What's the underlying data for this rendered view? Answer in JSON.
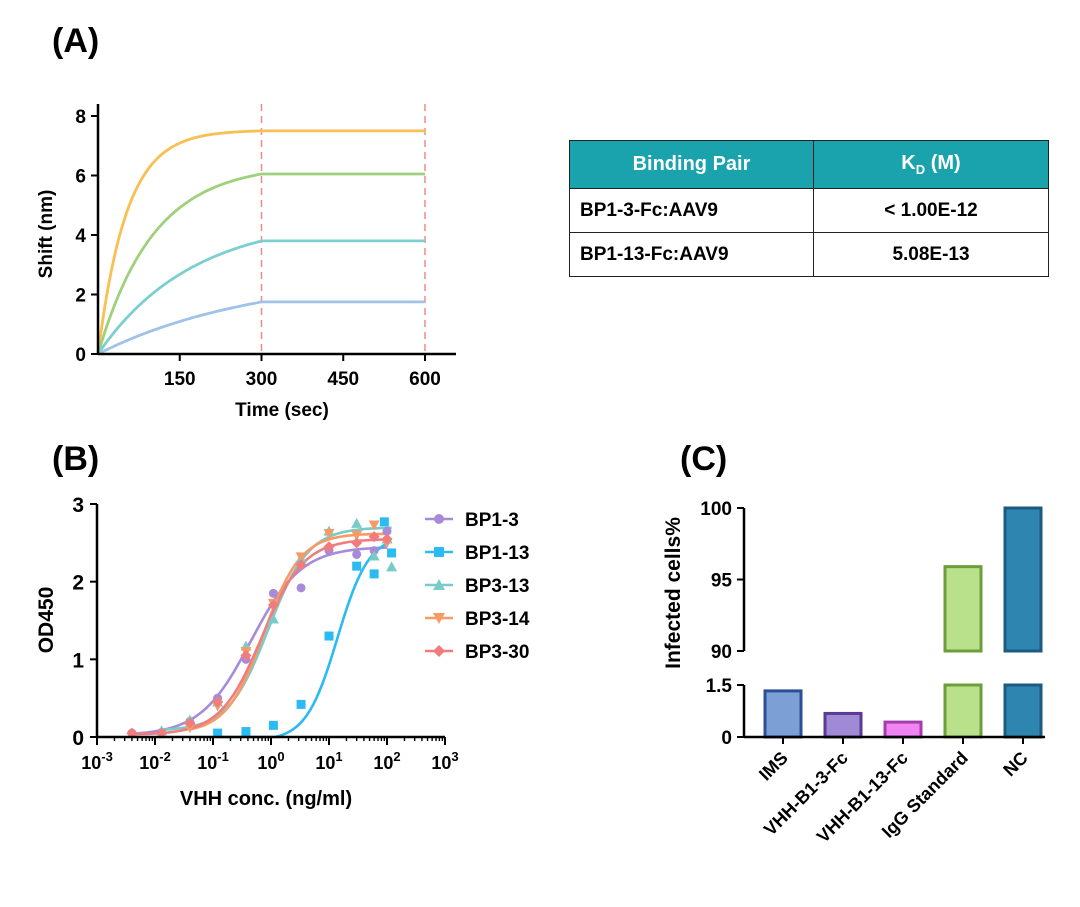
{
  "panels": {
    "a": "(A)",
    "b": "(B)",
    "c": "(C)"
  },
  "table": {
    "header_pair": "Binding Pair",
    "header_kd_main": "K",
    "header_kd_sub": "D",
    "header_kd_unit": " (M)",
    "rows": [
      {
        "pair": "BP1-3-Fc:AAV9",
        "kd": "< 1.00E-12"
      },
      {
        "pair": "BP1-13-Fc:AAV9",
        "kd": "5.08E-13"
      }
    ]
  },
  "chart_data": [
    {
      "id": "A",
      "type": "line",
      "xlabel": "Time (sec)",
      "ylabel": "Shift (nm)",
      "xlim": [
        0,
        650
      ],
      "ylim": [
        0,
        8
      ],
      "xticks": [
        150,
        300,
        450,
        600
      ],
      "yticks": [
        0,
        2,
        4,
        6,
        8
      ],
      "dashed_vlines": [
        300,
        600
      ],
      "association_end": 300,
      "series": [
        {
          "plateau": 7.5,
          "rate": 0.019,
          "color": "#f8bf52"
        },
        {
          "plateau": 6.05,
          "rate": 0.0098,
          "color": "#9fd07c"
        },
        {
          "plateau": 3.8,
          "rate": 0.0058,
          "color": "#7dcfcf"
        },
        {
          "plateau": 1.75,
          "rate": 0.0034,
          "color": "#9fc3e8"
        }
      ]
    },
    {
      "id": "B",
      "type": "scatter",
      "xscale": "log",
      "xlabel": "VHH conc. (ng/ml)",
      "ylabel": "OD450",
      "xlim": [
        0.001,
        1000
      ],
      "ylim": [
        0,
        3
      ],
      "yticks": [
        0,
        1,
        2,
        3
      ],
      "xtick_base": "10",
      "xtick_exponents": [
        "-3",
        "-2",
        "-1",
        "0",
        "1",
        "2",
        "3"
      ],
      "legend_position": "right",
      "series": [
        {
          "name": "BP1-3",
          "color": "#a78bd8",
          "marker": "circle",
          "x": [
            0.004,
            0.013,
            0.04,
            0.12,
            0.37,
            1.1,
            3.3,
            10,
            30,
            60,
            100
          ],
          "y": [
            0.05,
            0.06,
            0.2,
            0.5,
            1.0,
            1.85,
            1.92,
            2.4,
            2.35,
            2.4,
            2.65
          ],
          "fit": {
            "bottom": 0.02,
            "top": 2.45,
            "ec50": 0.45,
            "hill": 1.0
          }
        },
        {
          "name": "BP1-13",
          "color": "#2bbaf2",
          "marker": "square",
          "x": [
            0.12,
            0.37,
            1.1,
            3.3,
            10,
            30,
            60,
            90,
            120
          ],
          "y": [
            0.05,
            0.07,
            0.15,
            0.42,
            1.3,
            2.2,
            2.1,
            2.77,
            2.37
          ],
          "fit": {
            "bottom": -0.05,
            "top": 2.6,
            "ec50": 14,
            "hill": 1.6
          }
        },
        {
          "name": "BP3-13",
          "color": "#78cbc6",
          "marker": "triangle",
          "x": [
            0.013,
            0.04,
            0.12,
            0.37,
            1.1,
            3.3,
            10,
            30,
            60,
            100,
            120
          ],
          "y": [
            0.08,
            0.22,
            0.45,
            1.17,
            1.52,
            2.3,
            2.65,
            2.75,
            2.33,
            2.55,
            2.19
          ],
          "fit": {
            "bottom": 0.08,
            "top": 2.7,
            "ec50": 0.9,
            "hill": 1.25
          }
        },
        {
          "name": "BP3-14",
          "color": "#f79b66",
          "marker": "triangle-down",
          "x": [
            0.04,
            0.12,
            0.37,
            1.1,
            3.3,
            10,
            30,
            60,
            100
          ],
          "y": [
            0.12,
            0.4,
            1.1,
            1.72,
            2.32,
            2.62,
            2.6,
            2.73,
            2.5
          ],
          "fit": {
            "bottom": 0.05,
            "top": 2.62,
            "ec50": 0.75,
            "hill": 1.35
          }
        },
        {
          "name": "BP3-30",
          "color": "#f27c7c",
          "marker": "diamond",
          "x": [
            0.004,
            0.013,
            0.04,
            0.12,
            0.37,
            1.1,
            3.3,
            10,
            30,
            60,
            100
          ],
          "y": [
            0.05,
            0.05,
            0.18,
            0.45,
            1.05,
            1.7,
            2.22,
            2.45,
            2.5,
            2.58,
            2.55
          ],
          "fit": {
            "bottom": 0.03,
            "top": 2.55,
            "ec50": 0.7,
            "hill": 1.2
          }
        }
      ]
    },
    {
      "id": "C",
      "type": "bar",
      "ylabel": "Infected cells%",
      "axis_break": {
        "lower": [
          0,
          1.5
        ],
        "upper": [
          90,
          100
        ]
      },
      "yticks_lower": [
        0,
        1.5
      ],
      "yticks_upper": [
        90,
        95,
        100
      ],
      "categories": [
        "IMS",
        "VHH-B1-3-Fc",
        "VHH-B1-13-Fc",
        "IgG Standard",
        "NC"
      ],
      "values": [
        1.33,
        0.68,
        0.43,
        95.9,
        100
      ],
      "fills": [
        "#7c9fd6",
        "#a08ad5",
        "#f084f0",
        "#b9e08a",
        "#2e86b0"
      ],
      "strokes": [
        "#2c4f97",
        "#5a3a92",
        "#a33dab",
        "#6b9f3a",
        "#1d5a80"
      ]
    }
  ]
}
